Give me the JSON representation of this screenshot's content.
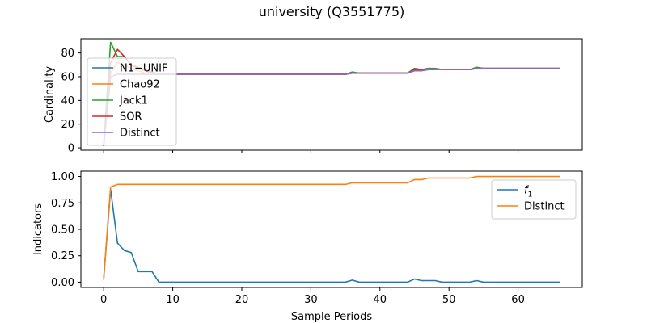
{
  "figure": {
    "title": "university (Q3551775)"
  },
  "chart_data": [
    {
      "type": "line",
      "ylabel": "Cardinality",
      "xlabel": "",
      "xlim": [
        -3.3,
        69.3
      ],
      "ylim": [
        -2,
        92
      ],
      "xticks": [
        0,
        10,
        20,
        30,
        40,
        50,
        60
      ],
      "yticks": [
        0,
        20,
        40,
        60,
        80
      ],
      "show_xtick_labels": false,
      "legend_position": "upper-left",
      "series": [
        {
          "name": "N1−UNIF",
          "color": "#1f77b4",
          "x": [
            0,
            1,
            2,
            3,
            4,
            5,
            6,
            7,
            8,
            9,
            10,
            11,
            12,
            13,
            14,
            15,
            16,
            17,
            18,
            19,
            20,
            21,
            22,
            23,
            24,
            25,
            26,
            27,
            28,
            29,
            30,
            31,
            32,
            33,
            34,
            35,
            36,
            37,
            38,
            39,
            40,
            41,
            42,
            43,
            44,
            45,
            46,
            47,
            48,
            49,
            50,
            51,
            52,
            53,
            54,
            55,
            56,
            57,
            58,
            59,
            60,
            61,
            62,
            63,
            64,
            65,
            66
          ],
          "y": [
            2,
            60,
            62,
            62,
            62,
            62,
            62,
            62,
            62,
            62,
            62,
            62,
            62,
            62,
            62,
            62,
            62,
            62,
            62,
            62,
            62,
            62,
            62,
            62,
            62,
            62,
            62,
            62,
            62,
            62,
            62,
            62,
            62,
            62,
            62,
            62,
            63,
            63,
            63,
            63,
            63,
            63,
            63,
            63,
            63,
            65,
            65,
            66,
            66,
            66,
            66,
            66,
            66,
            66,
            67,
            67,
            67,
            67,
            67,
            67,
            67,
            67,
            67,
            67,
            67,
            67,
            67
          ]
        },
        {
          "name": "Chao92",
          "color": "#ff7f0e",
          "x": [
            0,
            1,
            2,
            3,
            4,
            5,
            6,
            7,
            8,
            9,
            10,
            11,
            12,
            13,
            14,
            15,
            16,
            17,
            18,
            19,
            20,
            21,
            22,
            23,
            24,
            25,
            26,
            27,
            28,
            29,
            30,
            31,
            32,
            33,
            34,
            35,
            36,
            37,
            38,
            39,
            40,
            41,
            42,
            43,
            44,
            45,
            46,
            47,
            48,
            49,
            50,
            51,
            52,
            53,
            54,
            55,
            56,
            57,
            58,
            59,
            60,
            61,
            62,
            63,
            64,
            65,
            66
          ],
          "y": [
            2,
            63,
            72,
            70,
            67,
            65,
            63,
            63,
            62,
            62,
            62,
            62,
            62,
            62,
            62,
            62,
            62,
            62,
            62,
            62,
            62,
            62,
            62,
            62,
            62,
            62,
            62,
            62,
            62,
            62,
            62,
            62,
            62,
            62,
            62,
            62,
            63,
            63,
            63,
            63,
            63,
            63,
            63,
            63,
            63,
            66,
            66,
            66,
            66,
            66,
            66,
            66,
            66,
            66,
            67,
            67,
            67,
            67,
            67,
            67,
            67,
            67,
            67,
            67,
            67,
            67,
            67
          ]
        },
        {
          "name": "Jack1",
          "color": "#2ca02c",
          "x": [
            0,
            1,
            2,
            3,
            4,
            5,
            6,
            7,
            8,
            9,
            10,
            11,
            12,
            13,
            14,
            15,
            16,
            17,
            18,
            19,
            20,
            21,
            22,
            23,
            24,
            25,
            26,
            27,
            28,
            29,
            30,
            31,
            32,
            33,
            34,
            35,
            36,
            37,
            38,
            39,
            40,
            41,
            42,
            43,
            44,
            45,
            46,
            47,
            48,
            49,
            50,
            51,
            52,
            53,
            54,
            55,
            56,
            57,
            58,
            59,
            60,
            61,
            62,
            63,
            64,
            65,
            66
          ],
          "y": [
            2,
            89,
            77,
            77,
            70,
            68,
            66,
            64,
            62,
            62,
            62,
            62,
            62,
            62,
            62,
            62,
            62,
            62,
            62,
            62,
            62,
            62,
            62,
            62,
            62,
            62,
            62,
            62,
            62,
            62,
            62,
            62,
            62,
            62,
            62,
            62,
            64,
            63,
            63,
            63,
            63,
            63,
            63,
            63,
            63,
            67,
            66,
            67,
            67,
            66,
            66,
            66,
            66,
            66,
            68,
            67,
            67,
            67,
            67,
            67,
            67,
            67,
            67,
            67,
            67,
            67,
            67
          ]
        },
        {
          "name": "SOR",
          "color": "#d62728",
          "x": [
            0,
            1,
            2,
            3,
            4,
            5,
            6,
            7,
            8,
            9,
            10,
            11,
            12,
            13,
            14,
            15,
            16,
            17,
            18,
            19,
            20,
            21,
            22,
            23,
            24,
            25,
            26,
            27,
            28,
            29,
            30,
            31,
            32,
            33,
            34,
            35,
            36,
            37,
            38,
            39,
            40,
            41,
            42,
            43,
            44,
            45,
            46,
            47,
            48,
            49,
            50,
            51,
            52,
            53,
            54,
            55,
            56,
            57,
            58,
            59,
            60,
            61,
            62,
            63,
            64,
            65,
            66
          ],
          "y": [
            2,
            72,
            83,
            77,
            70,
            67,
            65,
            63,
            62,
            62,
            62,
            62,
            62,
            62,
            62,
            62,
            62,
            62,
            62,
            62,
            62,
            62,
            62,
            62,
            62,
            62,
            62,
            62,
            62,
            62,
            62,
            62,
            62,
            62,
            62,
            62,
            63,
            63,
            63,
            63,
            63,
            63,
            63,
            63,
            63,
            66,
            66,
            66,
            66,
            66,
            66,
            66,
            66,
            66,
            67,
            67,
            67,
            67,
            67,
            67,
            67,
            67,
            67,
            67,
            67,
            67,
            67
          ]
        },
        {
          "name": "Distinct",
          "color": "#9467bd",
          "x": [
            0,
            1,
            2,
            3,
            4,
            5,
            6,
            7,
            8,
            9,
            10,
            11,
            12,
            13,
            14,
            15,
            16,
            17,
            18,
            19,
            20,
            21,
            22,
            23,
            24,
            25,
            26,
            27,
            28,
            29,
            30,
            31,
            32,
            33,
            34,
            35,
            36,
            37,
            38,
            39,
            40,
            41,
            42,
            43,
            44,
            45,
            46,
            47,
            48,
            49,
            50,
            51,
            52,
            53,
            54,
            55,
            56,
            57,
            58,
            59,
            60,
            61,
            62,
            63,
            64,
            65,
            66
          ],
          "y": [
            2,
            60,
            62,
            62,
            62,
            62,
            62,
            62,
            62,
            62,
            62,
            62,
            62,
            62,
            62,
            62,
            62,
            62,
            62,
            62,
            62,
            62,
            62,
            62,
            62,
            62,
            62,
            62,
            62,
            62,
            62,
            62,
            62,
            62,
            62,
            62,
            63,
            63,
            63,
            63,
            63,
            63,
            63,
            63,
            63,
            65,
            65,
            66,
            66,
            66,
            66,
            66,
            66,
            66,
            67,
            67,
            67,
            67,
            67,
            67,
            67,
            67,
            67,
            67,
            67,
            67,
            67
          ]
        }
      ]
    },
    {
      "type": "line",
      "ylabel": "Indicators",
      "xlabel": "Sample Periods",
      "xlim": [
        -3.3,
        69.3
      ],
      "ylim": [
        -0.05,
        1.05
      ],
      "xticks": [
        0,
        10,
        20,
        30,
        40,
        50,
        60
      ],
      "yticks": [
        0.0,
        0.25,
        0.5,
        0.75,
        1.0
      ],
      "ytick_labels": [
        "0.00",
        "0.25",
        "0.50",
        "0.75",
        "1.00"
      ],
      "show_xtick_labels": true,
      "legend_position": "upper-right",
      "series": [
        {
          "name": "f",
          "name_subscript": "1",
          "color": "#1f77b4",
          "x": [
            0,
            1,
            2,
            3,
            4,
            5,
            6,
            7,
            8,
            9,
            10,
            11,
            12,
            13,
            14,
            15,
            16,
            17,
            18,
            19,
            20,
            21,
            22,
            23,
            24,
            25,
            26,
            27,
            28,
            29,
            30,
            31,
            32,
            33,
            34,
            35,
            36,
            37,
            38,
            39,
            40,
            41,
            42,
            43,
            44,
            45,
            46,
            47,
            48,
            49,
            50,
            51,
            52,
            53,
            54,
            55,
            56,
            57,
            58,
            59,
            60,
            61,
            62,
            63,
            64,
            65,
            66
          ],
          "y": [
            0.03,
            0.88,
            0.37,
            0.3,
            0.28,
            0.1,
            0.1,
            0.1,
            0,
            0,
            0,
            0,
            0,
            0,
            0,
            0,
            0,
            0,
            0,
            0,
            0,
            0,
            0,
            0,
            0,
            0,
            0,
            0,
            0,
            0,
            0,
            0,
            0,
            0,
            0,
            0,
            0.02,
            0,
            0,
            0,
            0,
            0,
            0,
            0,
            0,
            0.03,
            0.015,
            0.015,
            0.015,
            0,
            0,
            0,
            0,
            0,
            0.015,
            0,
            0,
            0,
            0,
            0,
            0,
            0,
            0,
            0,
            0,
            0,
            0
          ]
        },
        {
          "name": "Distinct",
          "color": "#ff7f0e",
          "x": [
            0,
            1,
            2,
            3,
            4,
            5,
            6,
            7,
            8,
            9,
            10,
            11,
            12,
            13,
            14,
            15,
            16,
            17,
            18,
            19,
            20,
            21,
            22,
            23,
            24,
            25,
            26,
            27,
            28,
            29,
            30,
            31,
            32,
            33,
            34,
            35,
            36,
            37,
            38,
            39,
            40,
            41,
            42,
            43,
            44,
            45,
            46,
            47,
            48,
            49,
            50,
            51,
            52,
            53,
            54,
            55,
            56,
            57,
            58,
            59,
            60,
            61,
            62,
            63,
            64,
            65,
            66
          ],
          "y": [
            0.03,
            0.9,
            0.925,
            0.925,
            0.925,
            0.925,
            0.925,
            0.925,
            0.925,
            0.925,
            0.925,
            0.925,
            0.925,
            0.925,
            0.925,
            0.925,
            0.925,
            0.925,
            0.925,
            0.925,
            0.925,
            0.925,
            0.925,
            0.925,
            0.925,
            0.925,
            0.925,
            0.925,
            0.925,
            0.925,
            0.925,
            0.925,
            0.925,
            0.925,
            0.925,
            0.925,
            0.94,
            0.94,
            0.94,
            0.94,
            0.94,
            0.94,
            0.94,
            0.94,
            0.94,
            0.97,
            0.97,
            0.985,
            0.985,
            0.985,
            0.985,
            0.985,
            0.985,
            0.985,
            1.0,
            1.0,
            1.0,
            1.0,
            1.0,
            1.0,
            1.0,
            1.0,
            1.0,
            1.0,
            1.0,
            1.0,
            1.0
          ]
        }
      ]
    }
  ]
}
